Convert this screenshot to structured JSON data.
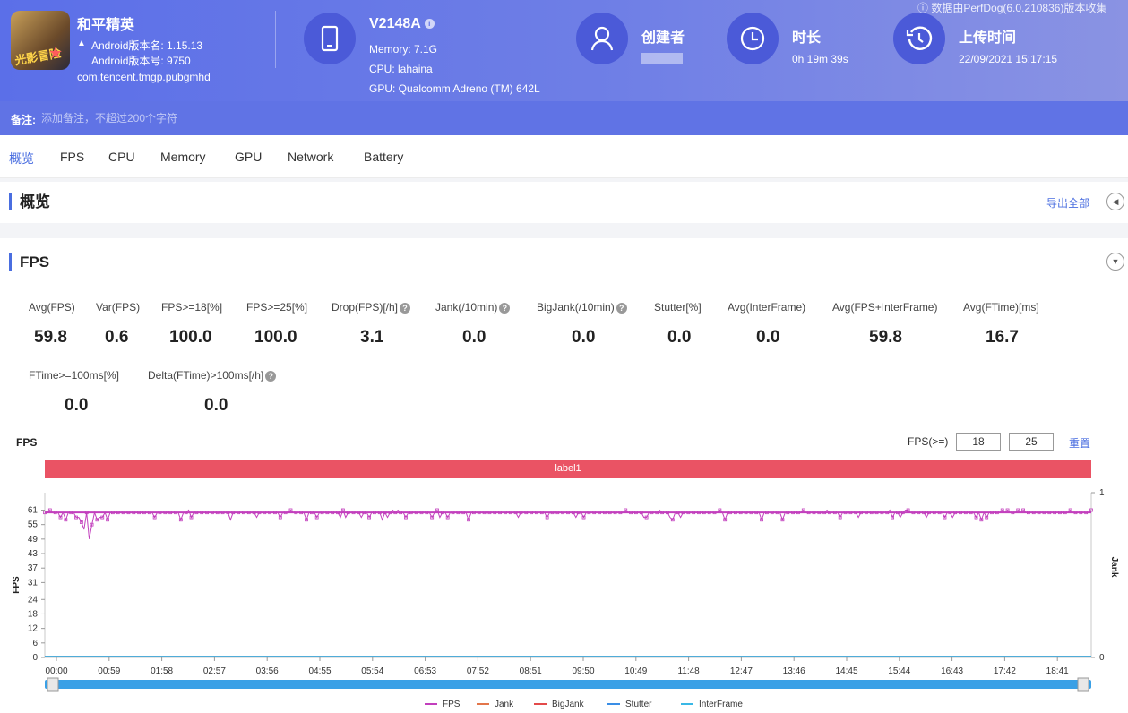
{
  "app": {
    "name": "和平精英",
    "version_name": "Android版本名: 1.15.13",
    "version_code": "Android版本号: 9750",
    "package": "com.tencent.tmgp.pubgmhd",
    "icon_text": "光影冒险"
  },
  "device": {
    "model": "V2148A",
    "memory": "Memory: 7.1G",
    "cpu": "CPU: lahaina",
    "gpu": "GPU: Qualcomm Adreno (TM) 642L"
  },
  "creator": {
    "label": "创建者"
  },
  "duration": {
    "label": "时长",
    "value": "0h 19m 39s"
  },
  "upload": {
    "label": "上传时间",
    "value": "22/09/2021 15:17:15"
  },
  "source_note": "数据由PerfDog(6.0.210836)版本收集",
  "remark": {
    "label": "备注:",
    "placeholder": "添加备注，不超过200个字符"
  },
  "tabs": [
    "概览",
    "FPS",
    "CPU",
    "Memory",
    "GPU",
    "Network",
    "Battery"
  ],
  "overview": {
    "title": "概览",
    "export_label": "导出全部"
  },
  "fps_section": {
    "title": "FPS",
    "metrics": [
      {
        "label": "Avg(FPS)",
        "value": "59.8"
      },
      {
        "label": "Var(FPS)",
        "value": "0.6"
      },
      {
        "label": "FPS>=18[%]",
        "value": "100.0"
      },
      {
        "label": "FPS>=25[%]",
        "value": "100.0"
      },
      {
        "label": "Drop(FPS)[/h]",
        "value": "3.1"
      },
      {
        "label": "Jank(/10min)",
        "value": "0.0"
      },
      {
        "label": "BigJank(/10min)",
        "value": "0.0"
      },
      {
        "label": "Stutter[%]",
        "value": "0.0"
      },
      {
        "label": "Avg(InterFrame)",
        "value": "0.0"
      },
      {
        "label": "Avg(FPS+InterFrame)",
        "value": "59.8"
      },
      {
        "label": "Avg(FTime)[ms]",
        "value": "16.7"
      },
      {
        "label": "FTime>=100ms[%]",
        "value": "0.0"
      },
      {
        "label": "Delta(FTime)>100ms[/h]",
        "value": "0.0"
      }
    ],
    "chart_title": "FPS",
    "threshold_label": "FPS(>=)",
    "threshold_1": "18",
    "threshold_2": "25",
    "reset_label": "重置",
    "band_label": "label1"
  },
  "chart_data": {
    "type": "line",
    "title": "FPS",
    "ylabel": "FPS",
    "y2label": "Jank",
    "yticks": [
      0,
      6,
      12,
      18,
      24,
      31,
      37,
      43,
      49,
      55,
      61
    ],
    "ylim": [
      0,
      66
    ],
    "y2ticks": [
      0,
      1
    ],
    "xticks": [
      "00:00",
      "00:59",
      "01:58",
      "02:57",
      "03:56",
      "04:55",
      "05:54",
      "06:53",
      "07:52",
      "08:51",
      "09:50",
      "10:49",
      "11:48",
      "12:47",
      "13:46",
      "14:45",
      "15:44",
      "16:43",
      "17:42",
      "18:41"
    ],
    "x_range_seconds": [
      0,
      1179
    ],
    "series": [
      {
        "name": "FPS",
        "color": "#c23fbd",
        "baseline": 60,
        "dips": [
          [
            0.02,
            57
          ],
          [
            0.03,
            58
          ],
          [
            0.035,
            56
          ],
          [
            0.038,
            53
          ],
          [
            0.042,
            49
          ],
          [
            0.046,
            55
          ],
          [
            0.05,
            57
          ],
          [
            0.055,
            58
          ]
        ]
      },
      {
        "name": "Jank",
        "color": "#e3764a",
        "baseline": 0
      },
      {
        "name": "BigJank",
        "color": "#e34a4a",
        "baseline": 0
      },
      {
        "name": "Stutter",
        "color": "#3a8ee6",
        "baseline": 0
      },
      {
        "name": "InterFrame",
        "color": "#3ab8e6",
        "baseline": 0
      }
    ],
    "legend_position": "bottom",
    "grid": false
  },
  "colors": {
    "accent": "#4a6ee0",
    "band": "#ea5364",
    "slider": "#3aa0e6"
  }
}
